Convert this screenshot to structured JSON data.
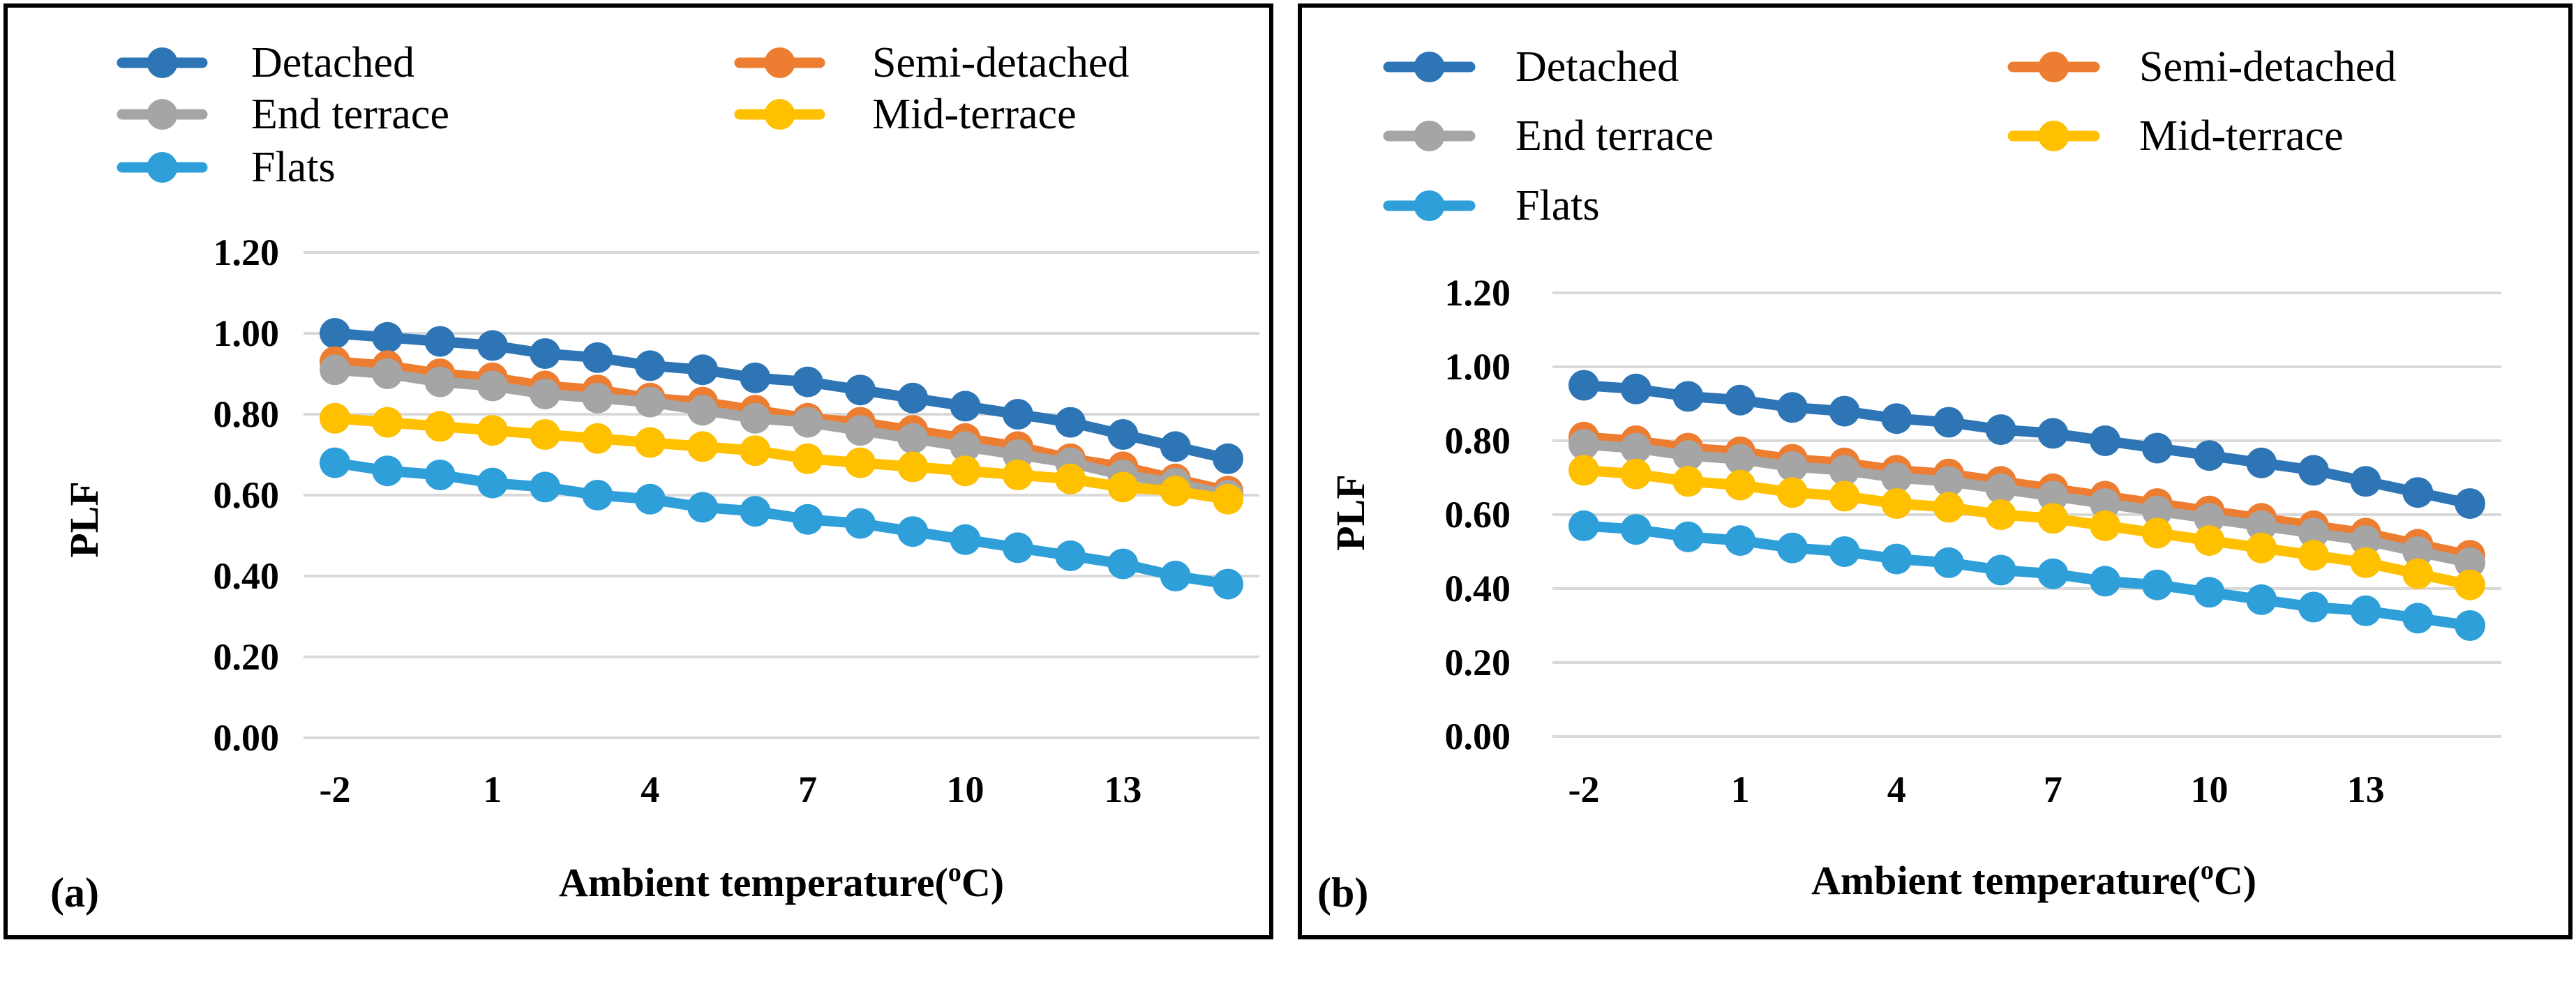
{
  "colors": {
    "Detached": "#2e75b6",
    "Semi-detached": "#ed7d31",
    "End terrace": "#a5a5a5",
    "Mid-terrace": "#ffc000",
    "Flats": "#2e9fd9"
  },
  "chart_data": [
    {
      "type": "line",
      "panel_label": "(a)",
      "title": "",
      "xlabel": "Ambient temperature(",
      "xlabel_sup": "o",
      "xlabel_end": "C)",
      "ylabel": "PLF",
      "ylim": [
        0,
        1.2
      ],
      "yticks": [
        0,
        0.2,
        0.4,
        0.6,
        0.8,
        1.0,
        1.2
      ],
      "ytick_labels": [
        "0.00",
        "0.20",
        "0.40",
        "0.60",
        "0.80",
        "1.00",
        "1.20"
      ],
      "xtick_labels": [
        "-2",
        "1",
        "4",
        "7",
        "10",
        "13"
      ],
      "x": [
        -2,
        -1,
        0,
        1,
        2,
        3,
        4,
        5,
        6,
        7,
        8,
        9,
        10,
        11,
        12,
        13,
        14,
        15
      ],
      "grid": true,
      "legend": "top",
      "series": [
        {
          "name": "Detached",
          "values": [
            1.0,
            0.99,
            0.98,
            0.97,
            0.95,
            0.94,
            0.92,
            0.91,
            0.89,
            0.88,
            0.86,
            0.84,
            0.82,
            0.8,
            0.78,
            0.75,
            0.72,
            0.69
          ]
        },
        {
          "name": "Semi-detached",
          "values": [
            0.93,
            0.92,
            0.9,
            0.89,
            0.87,
            0.86,
            0.84,
            0.83,
            0.81,
            0.79,
            0.78,
            0.76,
            0.74,
            0.72,
            0.69,
            0.67,
            0.64,
            0.61
          ]
        },
        {
          "name": "End terrace",
          "values": [
            0.91,
            0.9,
            0.88,
            0.87,
            0.85,
            0.84,
            0.83,
            0.81,
            0.79,
            0.78,
            0.76,
            0.74,
            0.72,
            0.7,
            0.68,
            0.65,
            0.63,
            0.6
          ]
        },
        {
          "name": "Mid-terrace",
          "values": [
            0.79,
            0.78,
            0.77,
            0.76,
            0.75,
            0.74,
            0.73,
            0.72,
            0.71,
            0.69,
            0.68,
            0.67,
            0.66,
            0.65,
            0.64,
            0.62,
            0.61,
            0.59
          ]
        },
        {
          "name": "Flats",
          "values": [
            0.68,
            0.66,
            0.65,
            0.63,
            0.62,
            0.6,
            0.59,
            0.57,
            0.56,
            0.54,
            0.53,
            0.51,
            0.49,
            0.47,
            0.45,
            0.43,
            0.4,
            0.38
          ]
        }
      ]
    },
    {
      "type": "line",
      "panel_label": "(b)",
      "title": "",
      "xlabel": "Ambient temperature(",
      "xlabel_sup": "o",
      "xlabel_end": "C)",
      "ylabel": "PLF",
      "ylim": [
        0,
        1.2
      ],
      "yticks": [
        0,
        0.2,
        0.4,
        0.6,
        0.8,
        1.0,
        1.2
      ],
      "ytick_labels": [
        "0.00",
        "0.20",
        "0.40",
        "0.60",
        "0.80",
        "1.00",
        "1.20"
      ],
      "xtick_labels": [
        "-2",
        "1",
        "4",
        "7",
        "10",
        "13"
      ],
      "x": [
        -2,
        -1,
        0,
        1,
        2,
        3,
        4,
        5,
        6,
        7,
        8,
        9,
        10,
        11,
        12,
        13,
        14,
        15
      ],
      "grid": true,
      "legend": "top",
      "series": [
        {
          "name": "Detached",
          "values": [
            0.95,
            0.94,
            0.92,
            0.91,
            0.89,
            0.88,
            0.86,
            0.85,
            0.83,
            0.82,
            0.8,
            0.78,
            0.76,
            0.74,
            0.72,
            0.69,
            0.66,
            0.63
          ]
        },
        {
          "name": "Semi-detached",
          "values": [
            0.81,
            0.8,
            0.78,
            0.77,
            0.75,
            0.74,
            0.72,
            0.71,
            0.69,
            0.67,
            0.65,
            0.63,
            0.61,
            0.59,
            0.57,
            0.55,
            0.52,
            0.49
          ]
        },
        {
          "name": "End terrace",
          "values": [
            0.79,
            0.78,
            0.76,
            0.75,
            0.73,
            0.72,
            0.7,
            0.69,
            0.67,
            0.65,
            0.63,
            0.61,
            0.59,
            0.57,
            0.55,
            0.53,
            0.5,
            0.47
          ]
        },
        {
          "name": "Mid-terrace",
          "values": [
            0.72,
            0.71,
            0.69,
            0.68,
            0.66,
            0.65,
            0.63,
            0.62,
            0.6,
            0.59,
            0.57,
            0.55,
            0.53,
            0.51,
            0.49,
            0.47,
            0.44,
            0.41
          ]
        },
        {
          "name": "Flats",
          "values": [
            0.57,
            0.56,
            0.54,
            0.53,
            0.51,
            0.5,
            0.48,
            0.47,
            0.45,
            0.44,
            0.42,
            0.41,
            0.39,
            0.37,
            0.35,
            0.34,
            0.32,
            0.3
          ]
        }
      ]
    }
  ]
}
